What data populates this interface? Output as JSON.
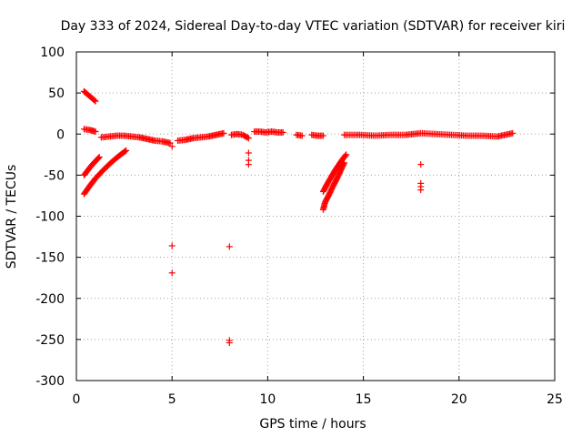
{
  "chart_data": {
    "type": "scatter",
    "title": "Day 333 of 2024, Sidereal Day-to-day VTEC variation (SDTVAR) for receiver kiri",
    "xlabel": "GPS time / hours",
    "ylabel": "SDTVAR / TECUs",
    "xlim": [
      0,
      25
    ],
    "ylim": [
      -300,
      100
    ],
    "xticks": [
      0,
      5,
      10,
      15,
      20,
      25
    ],
    "yticks": [
      100,
      50,
      0,
      -50,
      -100,
      -150,
      -200,
      -250,
      -300
    ],
    "grid": true,
    "marker": "+",
    "color": "#ff0000",
    "series": [
      {
        "name": "SDTVAR",
        "segments": [
          {
            "x": [
              0.4,
              0.6,
              0.8,
              1.0
            ],
            "y": [
              52,
              48,
              44,
              40
            ]
          },
          {
            "x": [
              0.4,
              0.7,
              1.0
            ],
            "y": [
              6,
              5,
              3
            ]
          },
          {
            "x": [
              0.4,
              0.6,
              0.8,
              1.0,
              1.2
            ],
            "y": [
              -50,
              -44,
              -38,
              -33,
              -28
            ]
          },
          {
            "x": [
              0.4,
              0.7,
              1.0,
              1.4,
              1.8,
              2.2,
              2.6
            ],
            "y": [
              -73,
              -63,
              -54,
              -44,
              -35,
              -27,
              -20
            ]
          },
          {
            "x": [
              1.3,
              1.7,
              2.1,
              2.5,
              2.9,
              3.3,
              3.7,
              4.1,
              4.5,
              4.9
            ],
            "y": [
              -4,
              -3,
              -2,
              -2,
              -3,
              -4,
              -6,
              -8,
              -9,
              -11
            ]
          },
          {
            "x": [
              5.3,
              5.7,
              6.1,
              6.5,
              6.9,
              7.3,
              7.7
            ],
            "y": [
              -8,
              -7,
              -5,
              -4,
              -3,
              -1,
              1
            ]
          },
          {
            "x": [
              8.1,
              8.4,
              8.7,
              9.0
            ],
            "y": [
              -1,
              0,
              -1,
              -5
            ]
          },
          {
            "x": [
              9.3,
              9.6,
              9.9,
              10.2,
              10.5,
              10.8
            ],
            "y": [
              3,
              3,
              2,
              3,
              2,
              2
            ]
          },
          {
            "x": [
              11.5,
              11.8
            ],
            "y": [
              -1,
              -2
            ]
          },
          {
            "x": [
              12.3,
              12.6,
              12.9
            ],
            "y": [
              -1,
              -2,
              -2
            ]
          },
          {
            "x": [
              12.9,
              13.0,
              13.2,
              13.4,
              13.6,
              13.8,
              14.0
            ],
            "y": [
              -92,
              -83,
              -74,
              -64,
              -55,
              -45,
              -35
            ]
          },
          {
            "x": [
              12.9,
              13.1,
              13.3,
              13.5,
              13.7,
              13.9,
              14.1
            ],
            "y": [
              -70,
              -61,
              -53,
              -45,
              -38,
              -31,
              -25
            ]
          },
          {
            "x": [
              14.0,
              14.8,
              15.6,
              16.4,
              17.2,
              18.0,
              18.8,
              19.6,
              20.4,
              21.2,
              22.0,
              22.8
            ],
            "y": [
              -1,
              -1,
              -2,
              -1,
              -1,
              1,
              0,
              -1,
              -2,
              -2,
              -3,
              1
            ]
          }
        ],
        "isolated": [
          {
            "x": 5.0,
            "y": -15
          },
          {
            "x": 5.0,
            "y": -136
          },
          {
            "x": 5.0,
            "y": -169
          },
          {
            "x": 8.0,
            "y": -137
          },
          {
            "x": 8.0,
            "y": -251
          },
          {
            "x": 8.0,
            "y": -254
          },
          {
            "x": 9.0,
            "y": -23
          },
          {
            "x": 9.0,
            "y": -32
          },
          {
            "x": 9.0,
            "y": -37
          },
          {
            "x": 18.0,
            "y": -37
          },
          {
            "x": 18.0,
            "y": -60
          },
          {
            "x": 18.0,
            "y": -64
          },
          {
            "x": 18.0,
            "y": -68
          }
        ]
      }
    ]
  }
}
